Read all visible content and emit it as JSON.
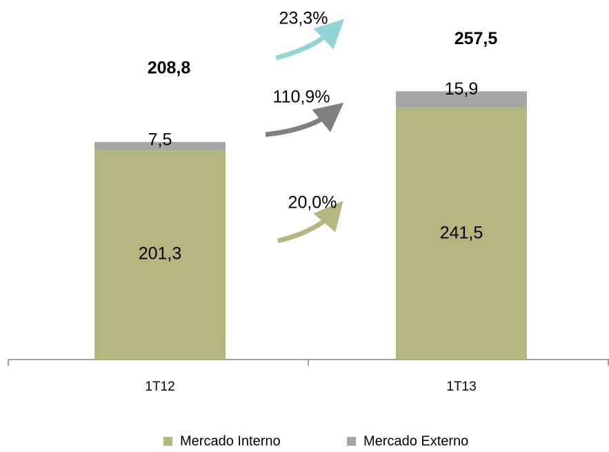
{
  "chart_data": {
    "type": "stacked_bar",
    "categories": [
      "1T12",
      "1T13"
    ],
    "series": [
      {
        "name": "Mercado Interno",
        "color": "#b3b67d",
        "values": [
          201.3,
          241.5
        ],
        "value_labels": [
          "201,3",
          "241,5"
        ]
      },
      {
        "name": "Mercado Externo",
        "color": "#a6a6a6",
        "values": [
          7.5,
          15.9
        ],
        "value_labels": [
          "7,5",
          "15,9"
        ]
      }
    ],
    "total_labels": [
      "208,8",
      "257,5"
    ],
    "growth_labels": [
      "23,3%",
      "110,9%",
      "20,0%"
    ],
    "ylim": [
      0,
      345
    ]
  }
}
